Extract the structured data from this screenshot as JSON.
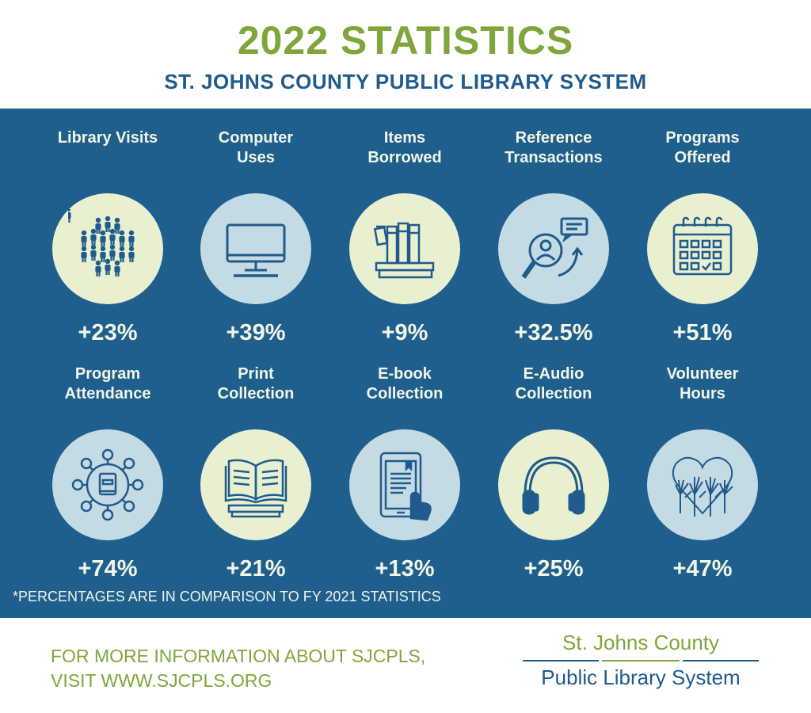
{
  "header": {
    "title": "2022 STATISTICS",
    "subtitle": "ST. JOHNS COUNTY PUBLIC LIBRARY SYSTEM"
  },
  "colors": {
    "panel": "#1e5f8e",
    "green": "#7fa63a",
    "navy": "#1f5b8c",
    "circle_cream": "#e8f0d0",
    "circle_blue": "#c5dbe4"
  },
  "stats": [
    {
      "label": "Library Visits",
      "value": "+23%",
      "icon": "people-crowd-icon"
    },
    {
      "label": "Computer\nUses",
      "value": "+39%",
      "icon": "computer-monitor-icon"
    },
    {
      "label": "Items\nBorrowed",
      "value": "+9%",
      "icon": "books-icon"
    },
    {
      "label": "Reference\nTransactions",
      "value": "+32.5%",
      "icon": "magnifier-person-icon"
    },
    {
      "label": "Programs\nOffered",
      "value": "+51%",
      "icon": "calendar-icon"
    },
    {
      "label": "Program\nAttendance",
      "value": "+74%",
      "icon": "network-book-icon"
    },
    {
      "label": "Print\nCollection",
      "value": "+21%",
      "icon": "open-book-icon"
    },
    {
      "label": "E-book\nCollection",
      "value": "+13%",
      "icon": "tablet-icon"
    },
    {
      "label": "E-Audio\nCollection",
      "value": "+25%",
      "icon": "headphones-icon"
    },
    {
      "label": "Volunteer\nHours",
      "value": "+47%",
      "icon": "raised-hands-heart-icon"
    }
  ],
  "footnote": "*PERCENTAGES ARE IN COMPARISON TO FY 2021 STATISTICS",
  "footer": {
    "info_line1": "FOR MORE INFORMATION ABOUT SJCPLS,",
    "info_line2": "VISIT WWW.SJCPLS.ORG",
    "logo_line1": "St. Johns County",
    "logo_line2": "Public Library System"
  }
}
